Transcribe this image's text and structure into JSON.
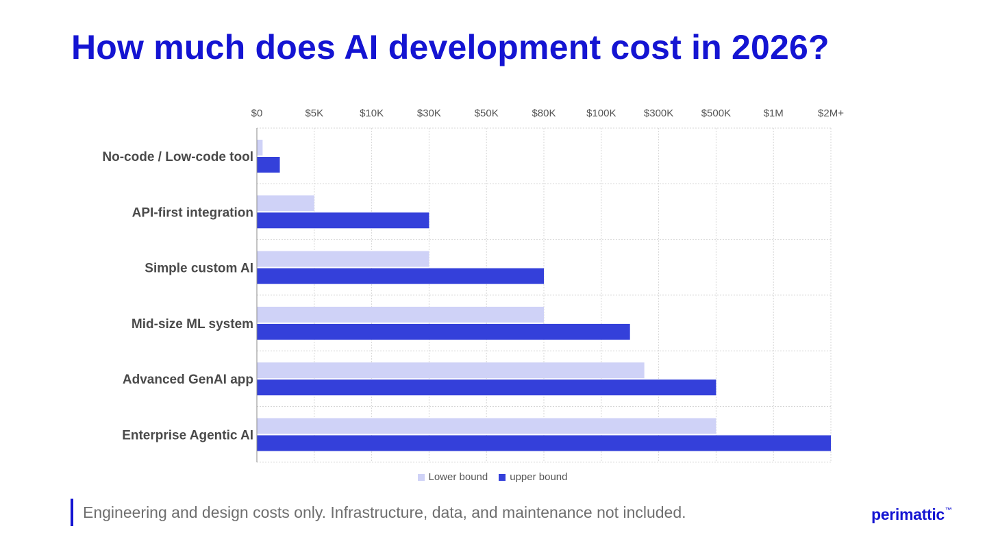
{
  "title": "How much does AI development cost in 2026?",
  "footnote": "Engineering and design costs only. Infrastructure, data, and maintenance not included.",
  "logo": {
    "text": "perimattic",
    "mark": "™"
  },
  "colors": {
    "title": "#1414d2",
    "lower": "#cfd2f7",
    "upper": "#3440da",
    "grid": "#d6d6d6",
    "axis": "#888888"
  },
  "chart_data": {
    "type": "bar",
    "orientation": "horizontal",
    "x_scale": "ordinal-ticks",
    "x_ticks": [
      "$0",
      "$5K",
      "$10K",
      "$30K",
      "$50K",
      "$80K",
      "$100K",
      "$300K",
      "$500K",
      "$1M",
      "$2M+"
    ],
    "categories": [
      "No-code / Low-code tool",
      "API-first integration",
      "Simple custom AI",
      "Mid-size ML system",
      "Advanced GenAI app",
      "Enterprise Agentic AI"
    ],
    "series": [
      {
        "name": "Lower bound",
        "values": [
          500,
          5000,
          30000,
          80000,
          250000,
          500000
        ]
      },
      {
        "name": "upper bound",
        "values": [
          2000,
          30000,
          80000,
          200000,
          500000,
          2000000
        ]
      }
    ],
    "tick_values": [
      0,
      5000,
      10000,
      30000,
      50000,
      80000,
      100000,
      300000,
      500000,
      1000000,
      2000000
    ],
    "grid": true,
    "legend_position": "bottom-center"
  }
}
